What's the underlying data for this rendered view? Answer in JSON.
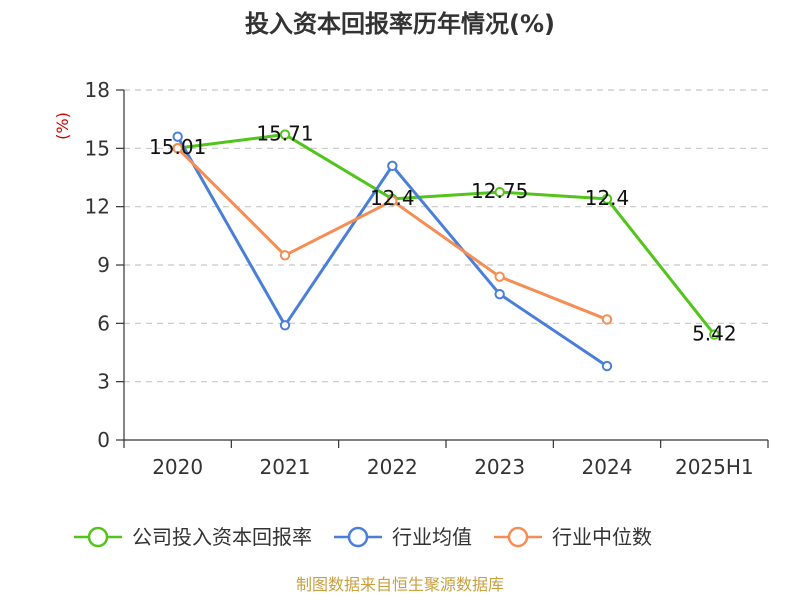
{
  "chart_data": {
    "type": "line",
    "title": "投入资本回报率历年情况(%)",
    "ylabel": "(%)",
    "xlabel": "",
    "categories": [
      "2020",
      "2021",
      "2022",
      "2023",
      "2024",
      "2025H1"
    ],
    "ylim": [
      0,
      18
    ],
    "yticks": [
      0,
      3,
      6,
      9,
      12,
      15,
      18
    ],
    "grid": true,
    "legend_position": "bottom",
    "series": [
      {
        "name": "公司投入资本回报率",
        "color": "#52c41a",
        "values": [
          15.01,
          15.71,
          12.4,
          12.75,
          12.4,
          5.42
        ],
        "labels": [
          "15.01",
          "15.71",
          "12.4",
          "12.75",
          "12.4",
          "5.42"
        ]
      },
      {
        "name": "行业均值",
        "color": "#4a7fd9",
        "values": [
          15.6,
          5.9,
          14.1,
          7.5,
          3.8,
          null
        ]
      },
      {
        "name": "行业中位数",
        "color": "#f58d55",
        "values": [
          15.0,
          9.5,
          12.3,
          8.4,
          6.2,
          null
        ]
      }
    ]
  },
  "source": "制图数据来自恒生聚源数据库"
}
